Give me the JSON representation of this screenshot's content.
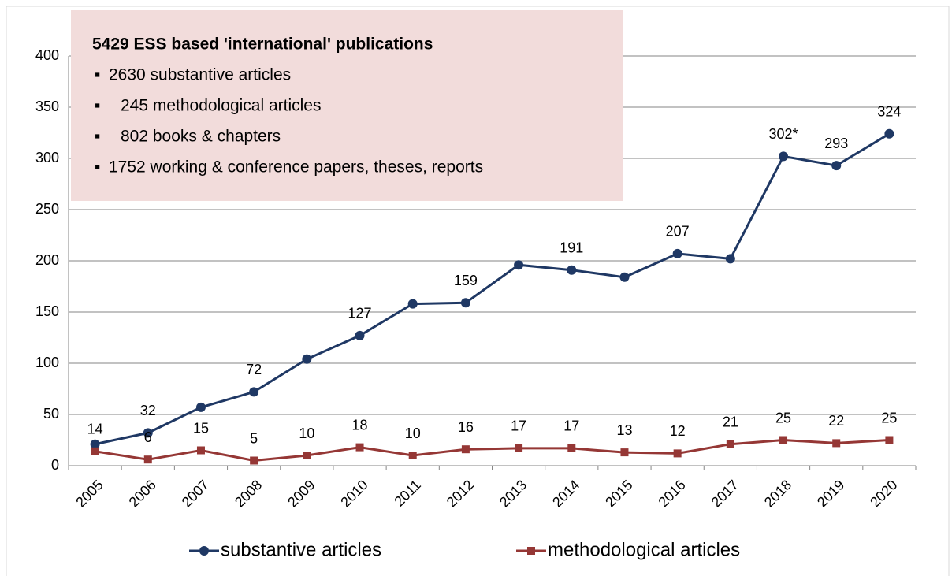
{
  "chart_data": {
    "type": "line",
    "categories": [
      "2005",
      "2006",
      "2007",
      "2008",
      "2009",
      "2010",
      "2011",
      "2012",
      "2013",
      "2014",
      "2015",
      "2016",
      "2017",
      "2018",
      "2019",
      "2020"
    ],
    "series": [
      {
        "name": "substantive articles",
        "color": "#1f3864",
        "marker": "circle",
        "values": [
          21,
          32,
          57,
          72,
          104,
          127,
          158,
          159,
          196,
          191,
          184,
          207,
          202,
          302,
          293,
          324
        ],
        "value_labels": [
          null,
          "32",
          null,
          "72",
          null,
          "127",
          null,
          "159",
          null,
          "191",
          null,
          "207",
          null,
          "302*",
          "293",
          "324"
        ]
      },
      {
        "name": "methodological articles",
        "color": "#953735",
        "marker": "square",
        "values": [
          14,
          6,
          15,
          5,
          10,
          18,
          10,
          16,
          17,
          17,
          13,
          12,
          21,
          25,
          22,
          25
        ]
      }
    ],
    "ylim": [
      0,
      400
    ],
    "yticks": [
      0,
      50,
      100,
      150,
      200,
      250,
      300,
      350,
      400
    ],
    "grid": true,
    "legend": "bottom",
    "annotation": {
      "title": "5429 ESS based 'international' publications",
      "items": [
        "2630 substantive articles",
        "245 methodological articles",
        "802 books & chapters",
        "1752 working & conference papers, theses, reports"
      ]
    }
  }
}
